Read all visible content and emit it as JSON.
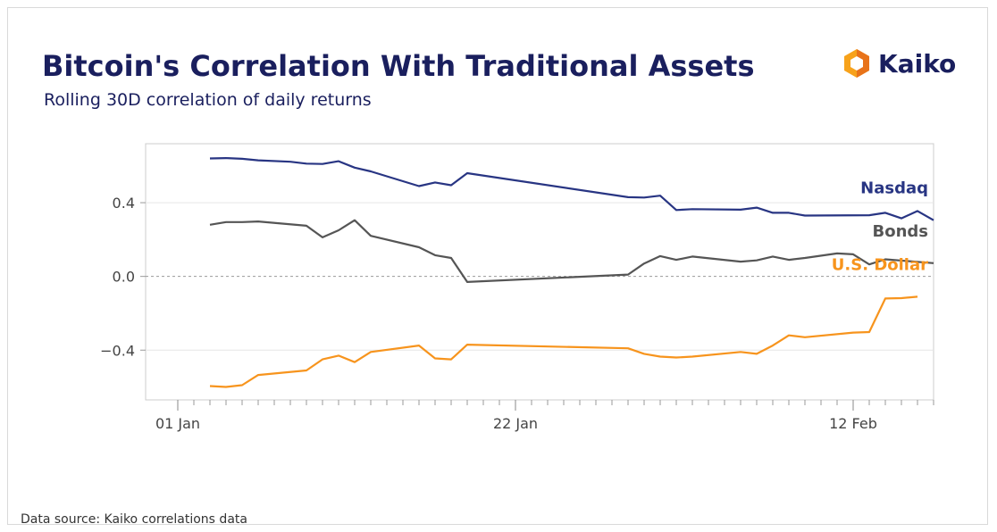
{
  "header": {
    "title": "Bitcoin's Correlation With Traditional Assets",
    "subtitle": "Rolling 30D correlation of daily returns"
  },
  "logo": {
    "text": "Kaiko",
    "icon": "kaiko-logo-icon",
    "colors": [
      "#f7a21b",
      "#e8731a"
    ]
  },
  "footer": {
    "source": "Data source: Kaiko correlations data"
  },
  "chart_data": {
    "type": "line",
    "title": "Bitcoin's Correlation With Traditional Assets",
    "subtitle": "Rolling 30D correlation of daily returns",
    "xlabel": "",
    "ylabel": "",
    "xlim": [
      -2,
      47
    ],
    "ylim": [
      -0.67,
      0.72
    ],
    "x_ticks": [
      {
        "x": 0,
        "label": "01 Jan"
      },
      {
        "x": 21,
        "label": "22 Jan"
      },
      {
        "x": 42,
        "label": "12 Feb"
      }
    ],
    "y_ticks": [
      {
        "y": 0.4,
        "label": "0.4"
      },
      {
        "y": 0.0,
        "label": "0.0"
      },
      {
        "y": -0.4,
        "label": "−0.4"
      }
    ],
    "zero_line": true,
    "series": [
      {
        "name": "Nasdaq",
        "color": "#283583",
        "points": [
          [
            2,
            0.64
          ],
          [
            3,
            0.642
          ],
          [
            4,
            0.638
          ],
          [
            5,
            0.63
          ],
          [
            7,
            0.622
          ],
          [
            8,
            0.612
          ],
          [
            9,
            0.61
          ],
          [
            10,
            0.625
          ],
          [
            11,
            0.59
          ],
          [
            12,
            0.57
          ],
          [
            15,
            0.49
          ],
          [
            16,
            0.51
          ],
          [
            17,
            0.495
          ],
          [
            18,
            0.56
          ],
          [
            28,
            0.43
          ],
          [
            29,
            0.428
          ],
          [
            30,
            0.438
          ],
          [
            31,
            0.36
          ],
          [
            32,
            0.365
          ],
          [
            35,
            0.362
          ],
          [
            36,
            0.373
          ],
          [
            37,
            0.345
          ],
          [
            38,
            0.345
          ],
          [
            39,
            0.33
          ],
          [
            43,
            0.332
          ],
          [
            44,
            0.345
          ],
          [
            45,
            0.315
          ],
          [
            46,
            0.355
          ],
          [
            47,
            0.305
          ]
        ]
      },
      {
        "name": "Bonds",
        "color": "#555555",
        "points": [
          [
            2,
            0.28
          ],
          [
            3,
            0.295
          ],
          [
            4,
            0.295
          ],
          [
            5,
            0.298
          ],
          [
            8,
            0.275
          ],
          [
            9,
            0.212
          ],
          [
            10,
            0.25
          ],
          [
            11,
            0.305
          ],
          [
            12,
            0.22
          ],
          [
            15,
            0.158
          ],
          [
            16,
            0.115
          ],
          [
            17,
            0.1
          ],
          [
            18,
            -0.03
          ],
          [
            28,
            0.01
          ],
          [
            29,
            0.07
          ],
          [
            30,
            0.11
          ],
          [
            31,
            0.09
          ],
          [
            32,
            0.108
          ],
          [
            35,
            0.08
          ],
          [
            36,
            0.087
          ],
          [
            37,
            0.108
          ],
          [
            38,
            0.09
          ],
          [
            39,
            0.1
          ],
          [
            41,
            0.125
          ],
          [
            42,
            0.12
          ],
          [
            43,
            0.065
          ],
          [
            44,
            0.093
          ],
          [
            47,
            0.072
          ]
        ]
      },
      {
        "name": "U.S. Dollar",
        "color": "#f7941d",
        "points": [
          [
            2,
            -0.595
          ],
          [
            3,
            -0.6
          ],
          [
            4,
            -0.59
          ],
          [
            5,
            -0.535
          ],
          [
            8,
            -0.51
          ],
          [
            9,
            -0.45
          ],
          [
            10,
            -0.43
          ],
          [
            11,
            -0.465
          ],
          [
            12,
            -0.41
          ],
          [
            15,
            -0.375
          ],
          [
            16,
            -0.445
          ],
          [
            17,
            -0.45
          ],
          [
            18,
            -0.37
          ],
          [
            28,
            -0.39
          ],
          [
            29,
            -0.42
          ],
          [
            30,
            -0.435
          ],
          [
            31,
            -0.44
          ],
          [
            32,
            -0.435
          ],
          [
            35,
            -0.41
          ],
          [
            36,
            -0.42
          ],
          [
            37,
            -0.375
          ],
          [
            38,
            -0.32
          ],
          [
            39,
            -0.33
          ],
          [
            42,
            -0.305
          ],
          [
            43,
            -0.302
          ],
          [
            44,
            -0.12
          ],
          [
            45,
            -0.118
          ],
          [
            46,
            -0.11
          ]
        ]
      }
    ]
  }
}
